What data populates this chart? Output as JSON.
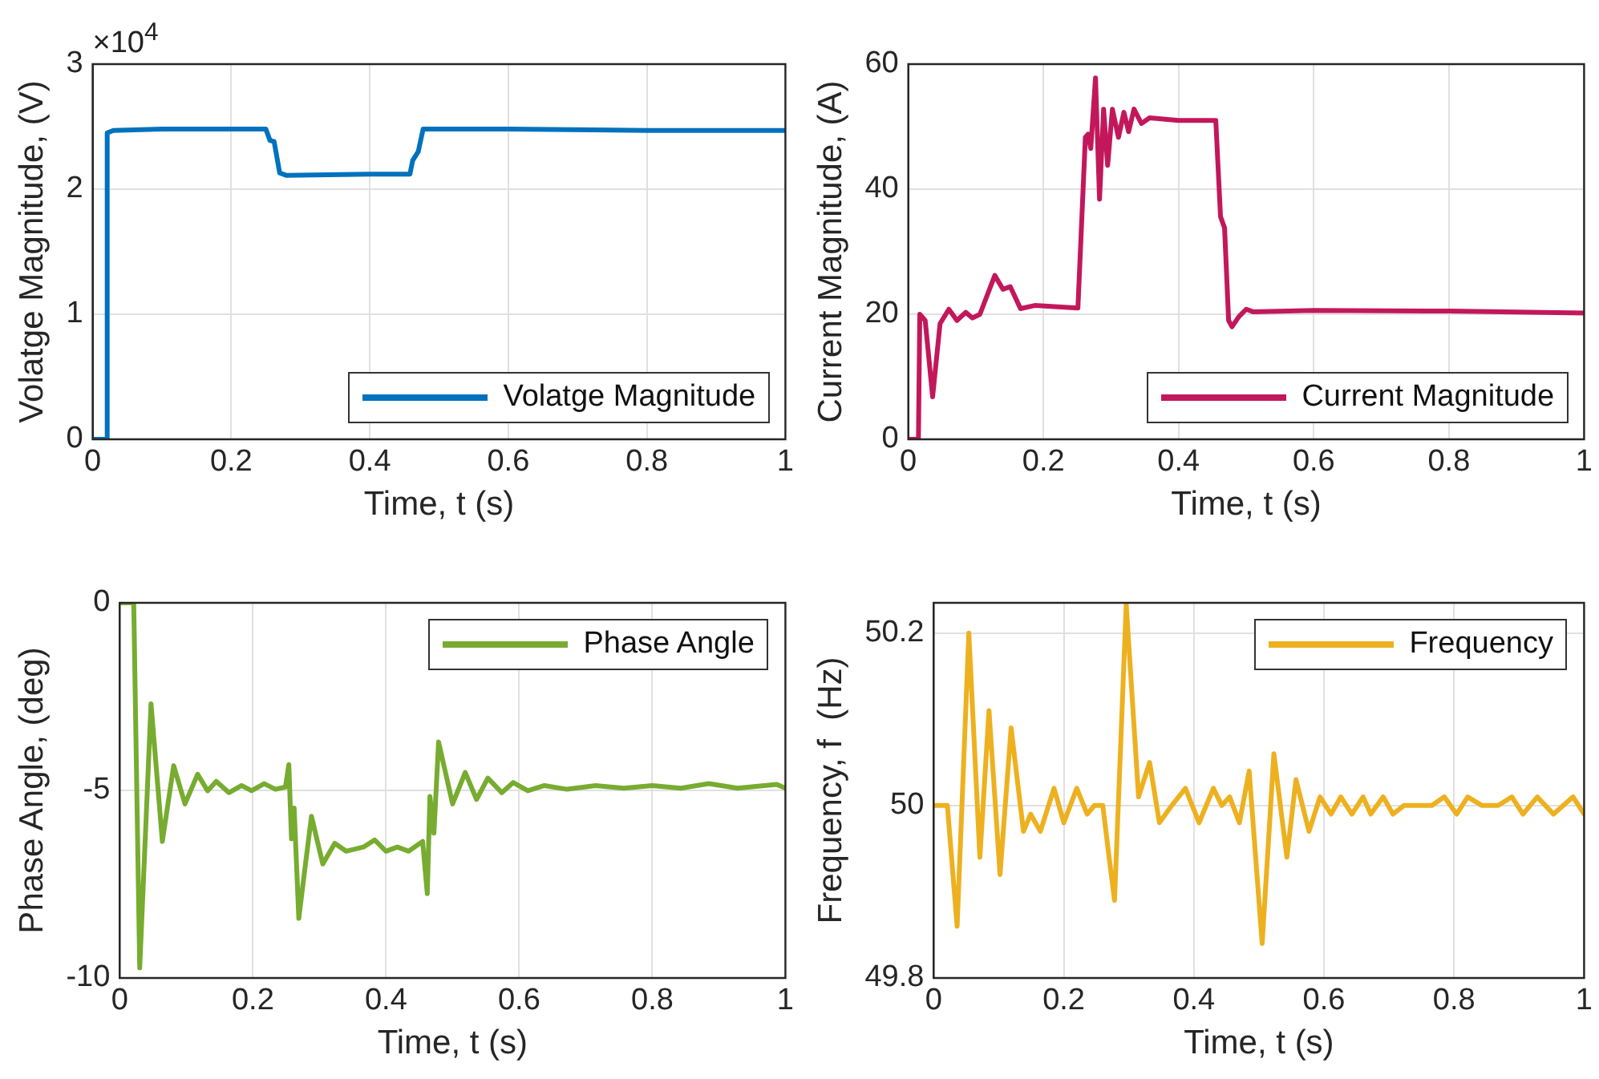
{
  "chart_data": [
    {
      "type": "line",
      "xlabel": "Time, t (s)",
      "ylabel": "Volatge Magnitude, (V)",
      "annotations": [
        "×10$^{4}$"
      ],
      "xlim": [
        0,
        1
      ],
      "xticks": [
        0,
        0.2,
        0.4,
        0.6,
        0.8,
        1
      ],
      "ylim": [
        0,
        3
      ],
      "yticks": [
        0,
        1,
        2,
        3
      ],
      "grid": true,
      "legend": "bottom right",
      "series": [
        {
          "name": "Volatge Magnitude",
          "color": "#0072bd",
          "x": [
            0,
            0.02,
            0.021,
            0.03,
            0.1,
            0.2,
            0.25,
            0.256,
            0.262,
            0.27,
            0.28,
            0.4,
            0.458,
            0.462,
            0.47,
            0.477,
            0.6,
            0.8,
            1
          ],
          "values": [
            0,
            0,
            2.45,
            2.47,
            2.48,
            2.48,
            2.48,
            2.39,
            2.38,
            2.13,
            2.11,
            2.12,
            2.12,
            2.23,
            2.3,
            2.48,
            2.48,
            2.47,
            2.47
          ]
        }
      ]
    },
    {
      "type": "line",
      "xlabel": "Time, t (s)",
      "ylabel": "Current Magnitude, (A)",
      "xlim": [
        0,
        1
      ],
      "xticks": [
        0,
        0.2,
        0.4,
        0.6,
        0.8,
        1
      ],
      "ylim": [
        0,
        60
      ],
      "yticks": [
        0,
        20,
        40,
        60
      ],
      "grid": true,
      "legend": "bottom right",
      "series": [
        {
          "name": "Current Magnitude",
          "color": "#c2185b",
          "x": [
            0,
            0.015,
            0.017,
            0.025,
            0.036,
            0.047,
            0.06,
            0.072,
            0.085,
            0.095,
            0.106,
            0.128,
            0.14,
            0.151,
            0.166,
            0.187,
            0.251,
            0.262,
            0.266,
            0.27,
            0.277,
            0.283,
            0.289,
            0.295,
            0.302,
            0.311,
            0.319,
            0.326,
            0.334,
            0.345,
            0.357,
            0.4,
            0.455,
            0.462,
            0.468,
            0.474,
            0.479,
            0.489,
            0.5,
            0.51,
            0.6,
            0.8,
            1
          ],
          "values": [
            0,
            0,
            20,
            19,
            6.8,
            18.5,
            20.8,
            19,
            20.3,
            19.4,
            20,
            26.2,
            24,
            24.4,
            20.9,
            21.4,
            21,
            48.3,
            48.8,
            46.5,
            57.8,
            38.4,
            52.8,
            43.8,
            52.8,
            48.3,
            52.3,
            49.2,
            52.8,
            50.5,
            51.4,
            51,
            51,
            35.6,
            33.8,
            19,
            18,
            19.6,
            20.8,
            20.4,
            20.6,
            20.5,
            20.2
          ]
        }
      ]
    },
    {
      "type": "line",
      "xlabel": "Time, t (s)",
      "ylabel": "Phase Angle, (deg)",
      "xlim": [
        0,
        1
      ],
      "xticks": [
        0,
        0.2,
        0.4,
        0.6,
        0.8,
        1
      ],
      "ylim": [
        -10,
        0
      ],
      "yticks": [
        -10,
        -5,
        0
      ],
      "grid": true,
      "legend": "top right",
      "series": [
        {
          "name": "Phase Angle",
          "color": "#77ac30",
          "x": [
            0,
            0.021,
            0.03,
            0.047,
            0.064,
            0.081,
            0.098,
            0.117,
            0.132,
            0.145,
            0.164,
            0.183,
            0.198,
            0.217,
            0.234,
            0.249,
            0.254,
            0.258,
            0.262,
            0.269,
            0.277,
            0.288,
            0.305,
            0.323,
            0.34,
            0.366,
            0.383,
            0.4,
            0.417,
            0.434,
            0.455,
            0.462,
            0.466,
            0.472,
            0.479,
            0.5,
            0.519,
            0.536,
            0.553,
            0.574,
            0.591,
            0.613,
            0.638,
            0.672,
            0.715,
            0.757,
            0.8,
            0.843,
            0.885,
            0.928,
            0.987,
            1
          ],
          "values": [
            0,
            0,
            -9.73,
            -2.69,
            -6.36,
            -4.34,
            -5.36,
            -4.57,
            -5.01,
            -4.76,
            -5.06,
            -4.87,
            -5.01,
            -4.82,
            -4.97,
            -4.91,
            -4.31,
            -6.29,
            -5.47,
            -8.41,
            -7.25,
            -5.69,
            -6.96,
            -6.41,
            -6.62,
            -6.51,
            -6.32,
            -6.62,
            -6.51,
            -6.62,
            -6.36,
            -7.75,
            -5.16,
            -6.14,
            -3.71,
            -5.36,
            -4.52,
            -5.24,
            -4.67,
            -5.06,
            -4.79,
            -5.01,
            -4.87,
            -4.97,
            -4.87,
            -4.94,
            -4.87,
            -4.94,
            -4.82,
            -4.94,
            -4.84,
            -4.94
          ]
        }
      ]
    },
    {
      "type": "line",
      "xlabel": "Time, t (s)",
      "ylabel": "Frequency, f  (Hz)",
      "xlim": [
        0,
        1
      ],
      "xticks": [
        0,
        0.2,
        0.4,
        0.6,
        0.8,
        1
      ],
      "ylim": [
        49.8,
        50.235
      ],
      "yticks": [
        49.8,
        50,
        50.2
      ],
      "grid": true,
      "legend": "top right",
      "series": [
        {
          "name": "Frequency",
          "color": "#edb120",
          "x": [
            0,
            0.021,
            0.036,
            0.054,
            0.071,
            0.085,
            0.102,
            0.119,
            0.138,
            0.149,
            0.164,
            0.185,
            0.2,
            0.22,
            0.236,
            0.247,
            0.26,
            0.268,
            0.278,
            0.296,
            0.315,
            0.332,
            0.347,
            0.366,
            0.387,
            0.408,
            0.43,
            0.443,
            0.455,
            0.47,
            0.485,
            0.505,
            0.523,
            0.543,
            0.557,
            0.577,
            0.594,
            0.611,
            0.626,
            0.643,
            0.66,
            0.672,
            0.691,
            0.706,
            0.723,
            0.766,
            0.785,
            0.804,
            0.821,
            0.843,
            0.868,
            0.889,
            0.906,
            0.928,
            0.953,
            0.983,
            1
          ],
          "values": [
            50,
            50,
            49.86,
            50.2,
            49.94,
            50.11,
            49.92,
            50.09,
            49.97,
            49.99,
            49.97,
            50.02,
            49.98,
            50.02,
            49.99,
            50,
            50,
            49.95,
            49.89,
            50.233,
            50.01,
            50.05,
            49.98,
            50,
            50.02,
            49.98,
            50.02,
            50,
            50.01,
            49.98,
            50.04,
            49.84,
            50.06,
            49.94,
            50.03,
            49.97,
            50.01,
            49.99,
            50.01,
            49.99,
            50.01,
            49.99,
            50.01,
            49.99,
            50,
            50,
            50.01,
            49.99,
            50.01,
            50,
            50,
            50.01,
            49.99,
            50.01,
            49.99,
            50.01,
            49.99
          ]
        }
      ]
    }
  ]
}
